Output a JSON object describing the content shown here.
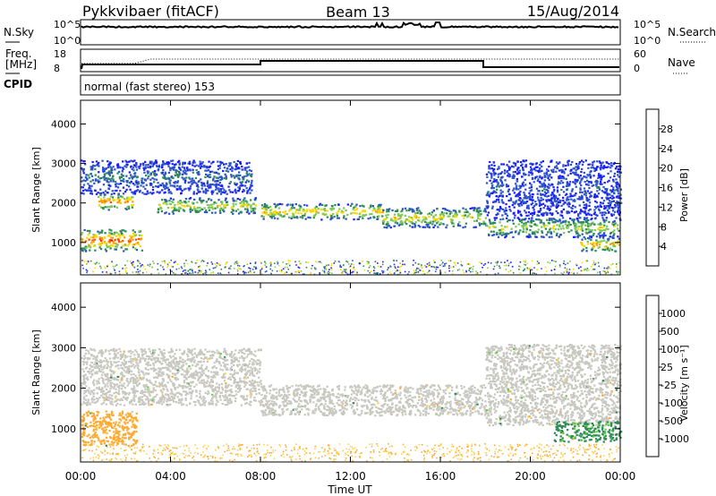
{
  "header": {
    "station": "Pykkvibaer (fitACF)",
    "beam": "Beam 13",
    "date": "15/Aug/2014"
  },
  "summary": {
    "nsky_label": "N.Sky",
    "nsearch_label": "N.Search",
    "freq_label_1": "Freq.",
    "freq_label_2": "[MHz]",
    "nave_label": "Nave",
    "cpid_label": "CPID",
    "cpid_text": "normal (fast stereo) 153",
    "noise_ticks": [
      "10^5",
      "10^0"
    ],
    "freq_ticks": [
      "18",
      "8"
    ],
    "nave_ticks": [
      "60",
      "0"
    ]
  },
  "axes": {
    "ylabel": "Slant Range [km]",
    "xlabel": "Time UT"
  },
  "power_scale": {
    "title": "Power [dB]",
    "ticks": [
      "4",
      "8",
      "12",
      "16",
      "20",
      "24",
      "28"
    ],
    "colors": [
      "#1a1aff",
      "#2d55c8",
      "#2e8b57",
      "#7cc85a",
      "#ffd700",
      "#ff9900",
      "#ff5000",
      "#e60000"
    ]
  },
  "velocity_scale": {
    "title": "Velocity [m s⁻¹]",
    "ticks": [
      "-1000",
      "-500",
      "-100",
      "-25",
      "25",
      "100",
      "500",
      "1000"
    ],
    "colors": [
      "#ee0000",
      "#ff6000",
      "#ffaa33",
      "#ffd24d",
      "#c8c8c0",
      "#5fcc3a",
      "#2e8b57",
      "#3b7fc0",
      "#1a3fb0"
    ]
  },
  "chart_data": [
    {
      "type": "heatmap",
      "name": "power",
      "title": "Power [dB]",
      "xlabel": "Time UT",
      "ylabel": "Slant Range [km]",
      "x_ticks": [
        "00:00",
        "04:00",
        "08:00",
        "12:00",
        "16:00",
        "20:00",
        "00:00"
      ],
      "y_ticks": [
        1000,
        2000,
        3000,
        4000
      ],
      "xlim_hours": [
        0,
        24
      ],
      "ylim_km": [
        180,
        4600
      ],
      "backscatter_bands": [
        {
          "t0": 0,
          "t1": 2.7,
          "r0": 800,
          "r1": 1350,
          "power_db": 26
        },
        {
          "t0": 0.7,
          "t1": 2.3,
          "r0": 1850,
          "r1": 2250,
          "power_db": 24
        },
        {
          "t0": 0,
          "t1": 7.6,
          "r0": 2250,
          "r1": 3100,
          "power_db": 8
        },
        {
          "t0": 3.4,
          "t1": 7.8,
          "r0": 1750,
          "r1": 2150,
          "power_db": 18
        },
        {
          "t0": 8.0,
          "t1": 13.4,
          "r0": 1600,
          "r1": 2000,
          "power_db": 20
        },
        {
          "t0": 13.4,
          "t1": 18.0,
          "r0": 1400,
          "r1": 1900,
          "power_db": 18
        },
        {
          "t0": 18.0,
          "t1": 24.0,
          "r0": 1150,
          "r1": 1650,
          "power_db": 16
        },
        {
          "t0": 22.2,
          "t1": 24.0,
          "r0": 800,
          "r1": 1150,
          "power_db": 22
        },
        {
          "t0": 18.0,
          "t1": 24.0,
          "r0": 1700,
          "r1": 3100,
          "power_db": 6
        }
      ]
    },
    {
      "type": "heatmap",
      "name": "velocity",
      "title": "Velocity [m s⁻¹]",
      "xlabel": "Time UT",
      "ylabel": "Slant Range [km]",
      "x_ticks": [
        "00:00",
        "04:00",
        "08:00",
        "12:00",
        "16:00",
        "20:00",
        "00:00"
      ],
      "y_ticks": [
        1000,
        2000,
        3000,
        4000
      ],
      "xlim_hours": [
        0,
        24
      ],
      "ylim_km": [
        180,
        4600
      ],
      "backscatter_bands": [
        {
          "t0": 0,
          "t1": 2.5,
          "r0": 600,
          "r1": 1450,
          "velocity": -300
        },
        {
          "t0": 0,
          "t1": 8.0,
          "r0": 1600,
          "r1": 3000,
          "velocity": 0
        },
        {
          "t0": 8.0,
          "t1": 18.0,
          "r0": 1350,
          "r1": 2100,
          "velocity": 0
        },
        {
          "t0": 18.0,
          "t1": 24.0,
          "r0": 1100,
          "r1": 3100,
          "velocity": 0
        },
        {
          "t0": 21.0,
          "t1": 24.0,
          "r0": 700,
          "r1": 1200,
          "velocity": 150
        }
      ]
    }
  ]
}
